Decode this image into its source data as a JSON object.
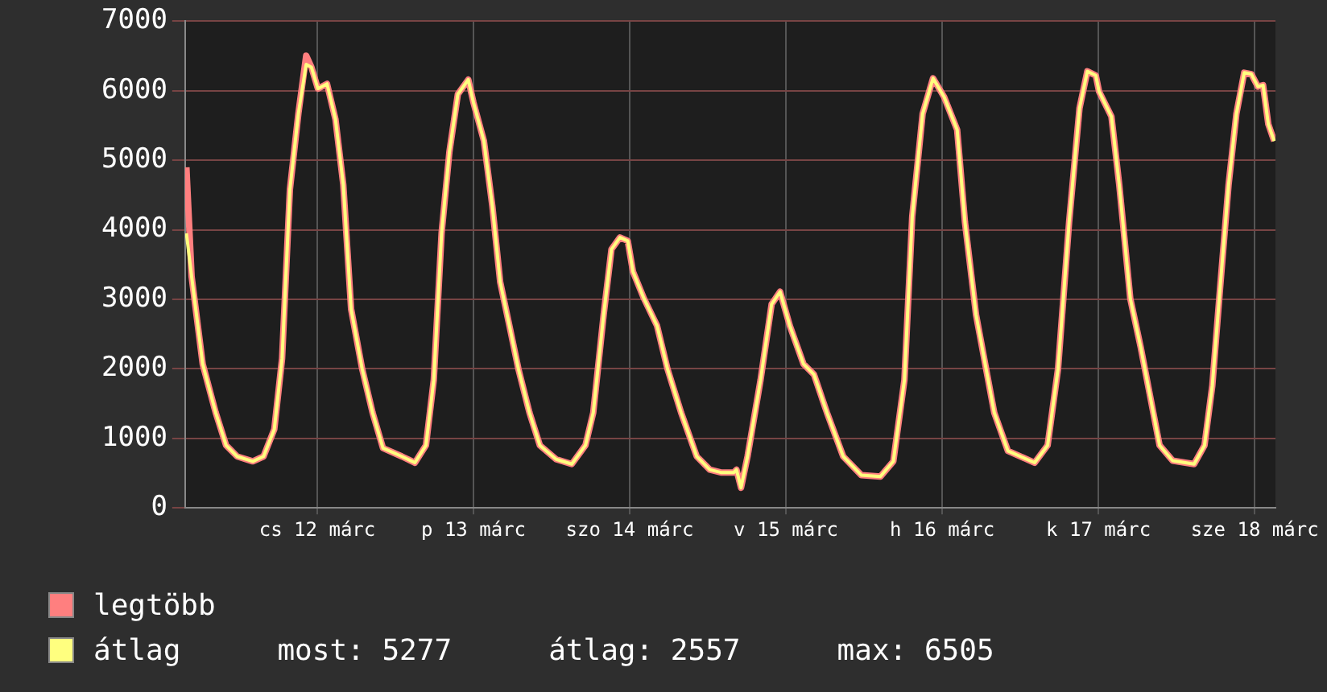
{
  "chart_data": {
    "type": "line",
    "x": [
      "--03-11T15:54",
      "--03-11T16:42",
      "--03-11T18:24",
      "--03-11T20:24",
      "--03-11T22:00",
      "--03-11T23:42",
      "--03-12T02:06",
      "--03-12T03:45",
      "--03-12T05:24",
      "--03-12T06:36",
      "--03-12T07:48",
      "--03-12T09:06",
      "--03-12T10:18",
      "--03-12T11:06",
      "--03-12T12:06",
      "--03-12T13:30",
      "--03-12T14:48",
      "--03-12T16:00",
      "--03-12T17:12",
      "--03-12T18:54",
      "--03-12T20:30",
      "--03-12T22:06",
      "--03-13T01:00",
      "--03-13T03:00",
      "--03-13T04:42",
      "--03-13T05:54",
      "--03-13T07:06",
      "--03-13T08:18",
      "--03-13T09:36",
      "--03-13T11:12",
      "--03-13T12:00",
      "--03-13T13:36",
      "--03-13T14:54",
      "--03-13T16:06",
      "--03-13T17:42",
      "--03-13T18:54",
      "--03-13T20:36",
      "--03-13T22:12",
      "--03-14T00:42",
      "--03-14T03:06",
      "--03-14T05:12",
      "--03-14T06:24",
      "--03-14T08:00",
      "--03-14T09:12",
      "--03-14T10:30",
      "--03-14T11:42",
      "--03-14T12:30",
      "--03-14T14:12",
      "--03-14T16:12",
      "--03-14T17:48",
      "--03-14T19:54",
      "--03-14T22:18",
      "--03-15T00:18",
      "--03-15T02:00",
      "--03-15T04:00",
      "--03-15T04:24",
      "--03-15T05:06",
      "--03-15T06:06",
      "--03-15T08:06",
      "--03-15T09:48",
      "--03-15T11:06",
      "--03-15T12:36",
      "--03-15T14:42",
      "--03-15T16:18",
      "--03-15T18:18",
      "--03-15T20:48",
      "--03-15T23:36",
      "--03-16T02:30",
      "--03-16T04:30",
      "--03-16T06:12",
      "--03-16T07:24",
      "--03-16T09:00",
      "--03-16T10:36",
      "--03-16T12:18",
      "--03-16T14:18",
      "--03-16T15:30",
      "--03-16T17:12",
      "--03-16T20:00",
      "--03-16T22:06",
      "--03-17T02:12",
      "--03-17T04:12",
      "--03-17T05:48",
      "--03-17T07:30",
      "--03-17T09:06",
      "--03-17T10:18",
      "--03-17T11:36",
      "--03-17T12:06",
      "--03-17T14:00",
      "--03-17T15:12",
      "--03-17T16:54",
      "--03-17T18:30",
      "--03-17T21:24",
      "--03-17T23:24",
      "--03-18T02:42",
      "--03-18T04:18",
      "--03-18T05:30",
      "--03-18T06:42",
      "--03-18T08:00",
      "--03-18T09:12",
      "--03-18T10:24",
      "--03-18T11:30",
      "--03-18T12:30",
      "--03-18T13:18",
      "--03-18T14:06",
      "--03-18T15:00"
    ],
    "series": [
      {
        "name": "legtöbb",
        "color": "#ff7f7f",
        "values": [
          4900,
          3330,
          2070,
          1370,
          900,
          740,
          670,
          740,
          1130,
          2150,
          4580,
          5670,
          6505,
          6340,
          6030,
          6100,
          5590,
          4650,
          2860,
          2000,
          1370,
          860,
          740,
          650,
          900,
          1840,
          3950,
          5120,
          5950,
          6160,
          5830,
          5280,
          4340,
          3250,
          2540,
          2000,
          1370,
          900,
          700,
          630,
          900,
          1370,
          2780,
          3720,
          3890,
          3840,
          3400,
          3010,
          2620,
          2000,
          1370,
          740,
          550,
          510,
          510,
          550,
          290,
          740,
          1840,
          2930,
          3110,
          2620,
          2070,
          1920,
          1370,
          740,
          470,
          450,
          670,
          1840,
          4190,
          5670,
          6180,
          5910,
          5440,
          4110,
          2780,
          1370,
          820,
          650,
          900,
          2000,
          4110,
          5750,
          6280,
          6220,
          5990,
          5630,
          4650,
          3010,
          2310,
          900,
          680,
          630,
          900,
          1760,
          3170,
          4650,
          5670,
          6260,
          6240,
          6060,
          6080,
          5520,
          5277
        ]
      },
      {
        "name": "átlag",
        "color": "#ffff7f",
        "values": [
          3950,
          3330,
          2070,
          1370,
          900,
          740,
          670,
          740,
          1130,
          2150,
          4580,
          5670,
          6380,
          6340,
          6030,
          6100,
          5590,
          4650,
          2860,
          2000,
          1370,
          860,
          740,
          650,
          900,
          1840,
          3950,
          5120,
          5950,
          6160,
          5830,
          5280,
          4340,
          3250,
          2540,
          2000,
          1370,
          900,
          700,
          630,
          900,
          1370,
          2780,
          3720,
          3890,
          3840,
          3400,
          3010,
          2620,
          2000,
          1370,
          740,
          550,
          510,
          510,
          550,
          290,
          740,
          1840,
          2930,
          3110,
          2620,
          2070,
          1920,
          1370,
          740,
          470,
          450,
          670,
          1840,
          4190,
          5670,
          6180,
          5910,
          5440,
          4110,
          2780,
          1370,
          820,
          650,
          900,
          2000,
          4110,
          5750,
          6280,
          6220,
          5990,
          5630,
          4650,
          3010,
          2310,
          900,
          680,
          630,
          900,
          1760,
          3170,
          4650,
          5670,
          6260,
          6240,
          6060,
          6080,
          5520,
          5277
        ]
      }
    ],
    "xlim": [
      "--03-11T15:42",
      "--03-18T15:12"
    ],
    "xticks": [
      {
        "value": "--03-12T12:00",
        "label": "cs 12 márc"
      },
      {
        "value": "--03-13T12:00",
        "label": "p 13 márc"
      },
      {
        "value": "--03-14T12:00",
        "label": "szo 14 márc"
      },
      {
        "value": "--03-15T12:00",
        "label": "v 15 márc"
      },
      {
        "value": "--03-16T12:00",
        "label": "h 16 márc"
      },
      {
        "value": "--03-17T12:00",
        "label": "k 17 márc"
      },
      {
        "value": "--03-18T12:00",
        "label": "sze 18 márc"
      }
    ],
    "ylim": [
      0,
      7000
    ],
    "yticks": [
      0,
      1000,
      2000,
      3000,
      4000,
      5000,
      6000,
      7000
    ],
    "grid": true,
    "legend": "bottom left",
    "marker": "none",
    "line_style": "solid",
    "annotations": [
      "most: 5277",
      "átlag: 2557",
      "max: 6505"
    ]
  }
}
